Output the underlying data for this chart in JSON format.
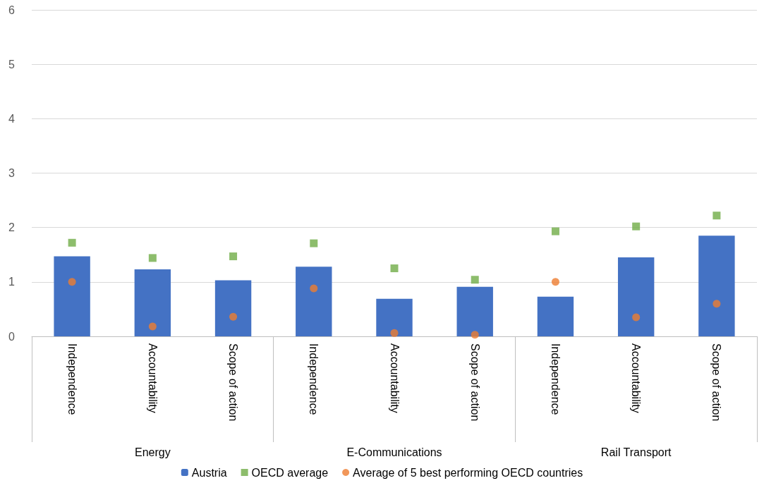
{
  "chart_data": {
    "type": "bar",
    "categories": [
      "Independence",
      "Accountability",
      "Scope of action",
      "Independence",
      "Accountability",
      "Scope of action",
      "Independence",
      "Accountability",
      "Scope of action"
    ],
    "series": [
      {
        "name": "Austria",
        "color": "#4472c4",
        "values": [
          1.47,
          1.23,
          1.03,
          1.28,
          0.69,
          0.91,
          0.73,
          1.45,
          1.85
        ]
      },
      {
        "name": "OECD average",
        "type": "scatter",
        "marker": "square",
        "color": "#70ad47",
        "values": [
          1.72,
          1.44,
          1.47,
          1.71,
          1.25,
          1.04,
          1.93,
          2.02,
          2.22
        ]
      },
      {
        "name": "Average of 5 best performing OECD countries",
        "type": "scatter",
        "marker": "circle",
        "color": "#ed7d31",
        "values": [
          1.0,
          0.18,
          0.36,
          0.88,
          0.06,
          0.03,
          1.0,
          0.35,
          0.6
        ]
      }
    ],
    "annotations": [
      "Energy",
      "E-Communications",
      "Rail Transport"
    ],
    "ylim": [
      0,
      6
    ],
    "yticks": [
      0,
      1,
      2,
      3,
      4,
      5,
      6
    ],
    "grid": "y",
    "legend": "bottom"
  }
}
